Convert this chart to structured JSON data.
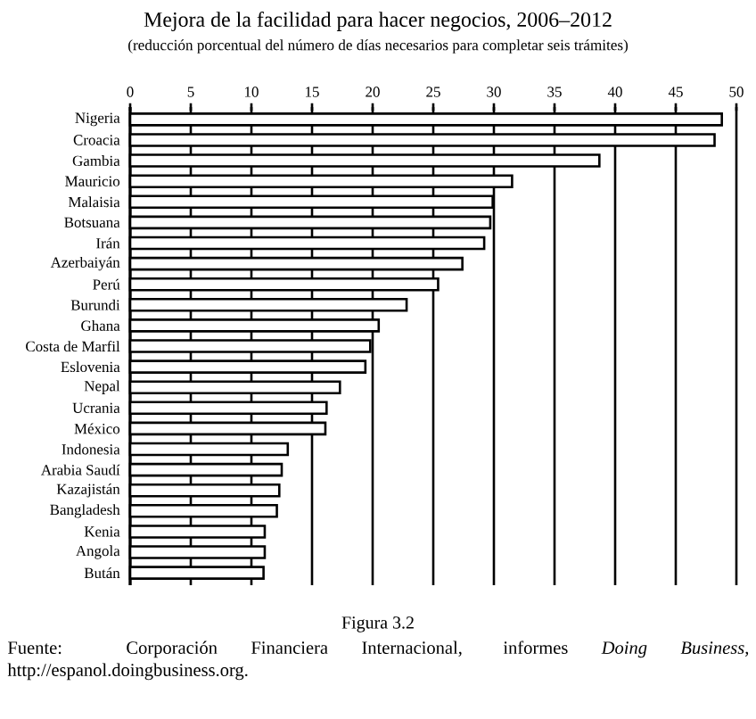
{
  "chart_data": {
    "type": "bar",
    "orientation": "horizontal",
    "title": "Mejora de la facilidad para hacer negocios, 2006–2012",
    "subtitle": "(reducción porcentual del número de días necesarios para completar seis trámites)",
    "categories": [
      "Nigeria",
      "Croacia",
      "Gambia",
      "Mauricio",
      "Malaisia",
      "Botsuana",
      "Irán",
      "Azerbaiyán",
      "Perú",
      "Burundi",
      "Ghana",
      "Costa de Marfil",
      "Eslovenia",
      "Nepal",
      "Ucrania",
      "México",
      "Indonesia",
      "Arabia Saudí",
      "Kazajistán",
      "Bangladesh",
      "Kenia",
      "Angola",
      "Bután"
    ],
    "values": [
      48.8,
      48.2,
      38.7,
      31.5,
      29.9,
      29.7,
      29.2,
      27.4,
      25.4,
      22.8,
      20.5,
      19.8,
      19.4,
      17.3,
      16.2,
      16.1,
      13.0,
      12.5,
      12.3,
      12.1,
      11.1,
      11.1,
      11.0
    ],
    "color": "#ffffff",
    "xlim": [
      0,
      50
    ],
    "xticks": [
      0,
      5,
      10,
      15,
      20,
      25,
      30,
      35,
      40,
      45,
      50
    ],
    "grid": "x",
    "annotations": [
      "Figura 3.2",
      "Fuente: Corporación Financiera Internacional, informes *Doing Business*, http://espanol.doingbusiness.org."
    ]
  }
}
